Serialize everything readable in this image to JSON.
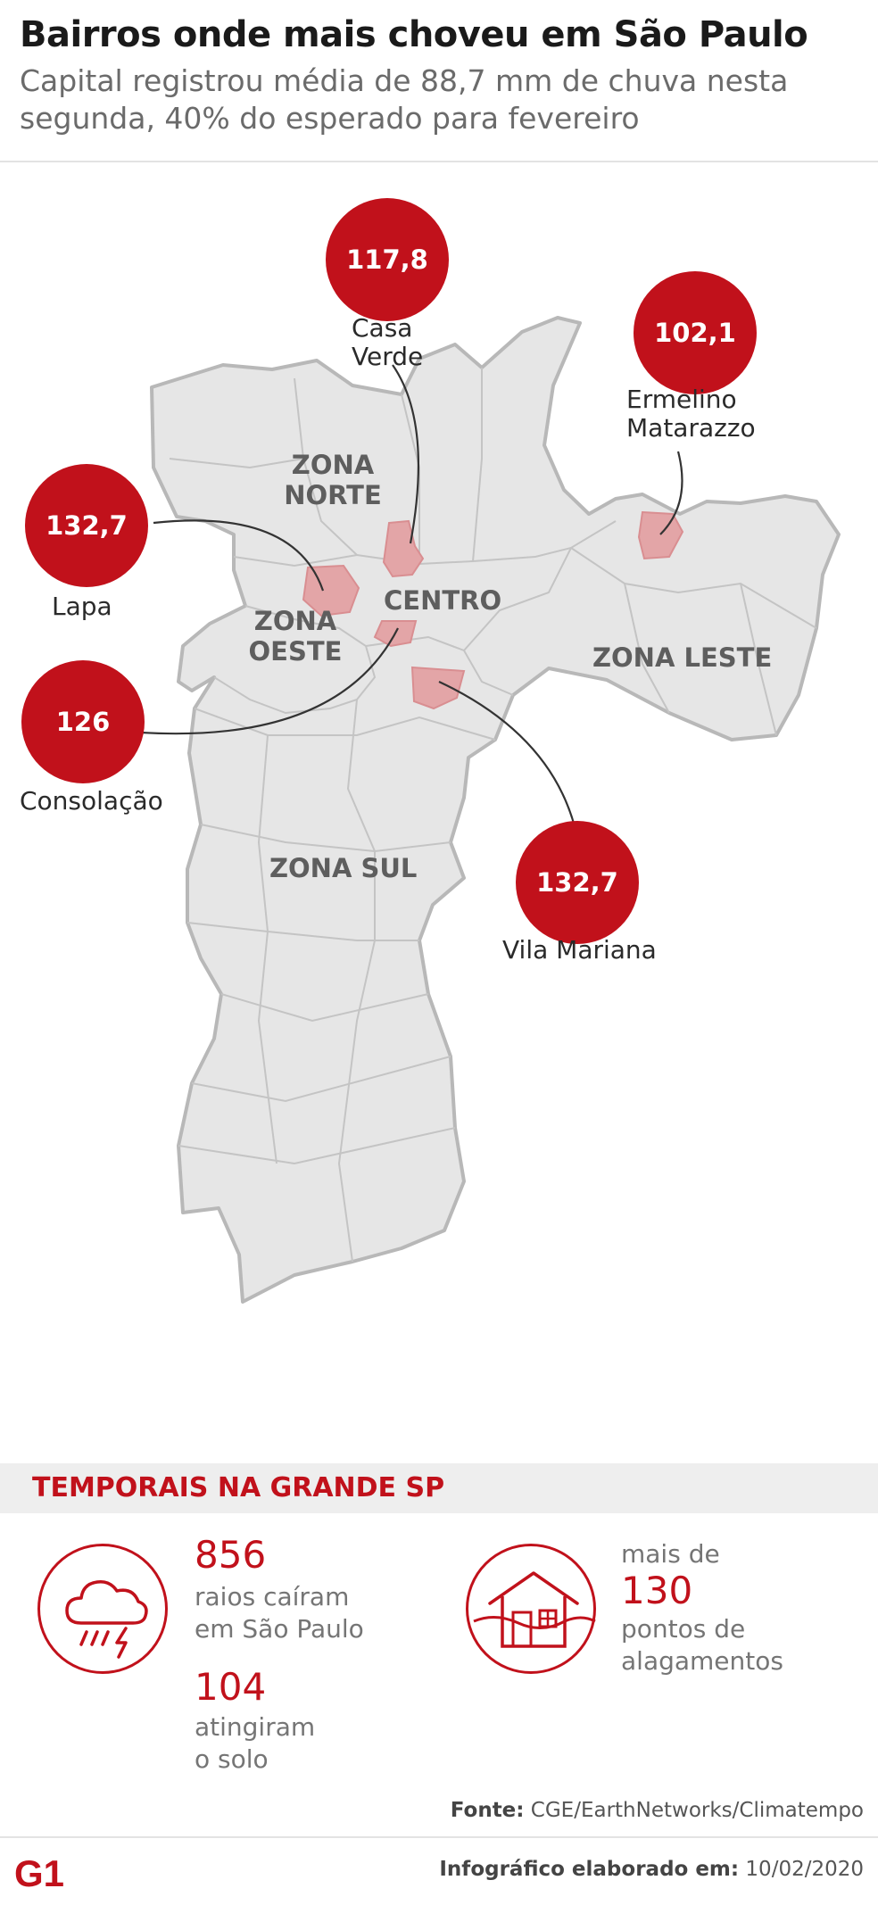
{
  "header": {
    "title": "Bairros onde mais choveu em São Paulo",
    "subtitle": "Capital registrou média de 88,7 mm de chuva nesta segunda, 40% do esperado para fevereiro"
  },
  "map": {
    "zones": {
      "norte_1": "ZONA",
      "norte_2": "NORTE",
      "oeste_1": "ZONA",
      "oeste_2": "OESTE",
      "centro": "CENTRO",
      "leste": "ZONA LESTE",
      "sul": "ZONA SUL"
    },
    "neighborhoods": {
      "casa_verde": {
        "value": "117,8",
        "line1": "Casa",
        "line2": "Verde"
      },
      "ermelino": {
        "value": "102,1",
        "line1": "Ermelino",
        "line2": "Matarazzo"
      },
      "lapa": {
        "value": "132,7",
        "name": "Lapa"
      },
      "consolacao": {
        "value": "126",
        "name": "Consolação"
      },
      "vila_mariana": {
        "value": "132,7",
        "name": "Vila Mariana"
      }
    },
    "colors": {
      "badge": "#c1111b",
      "highlight": "#e3a5a7",
      "land": "#e6e6e6",
      "border": "#b8b8b8"
    }
  },
  "storms": {
    "title": "TEMPORAIS NA GRANDE SP",
    "lightning": {
      "icon": "storm-cloud-icon",
      "num1": "856",
      "txt1_a": "raios caíram",
      "txt1_b": "em  São Paulo",
      "num2": "104",
      "txt2_a": "atingiram",
      "txt2_b": "o solo"
    },
    "flood": {
      "icon": "flooded-house-icon",
      "pre": "mais de",
      "num": "130",
      "txt_a": "pontos de",
      "txt_b": "alagamentos"
    }
  },
  "footer": {
    "source_label": "Fonte:",
    "source_value": "CGE/EarthNetworks/Climatempo",
    "credit_label": "Infográfico elaborado em:",
    "credit_value": "10/02/2020",
    "logo_text": "G1"
  }
}
